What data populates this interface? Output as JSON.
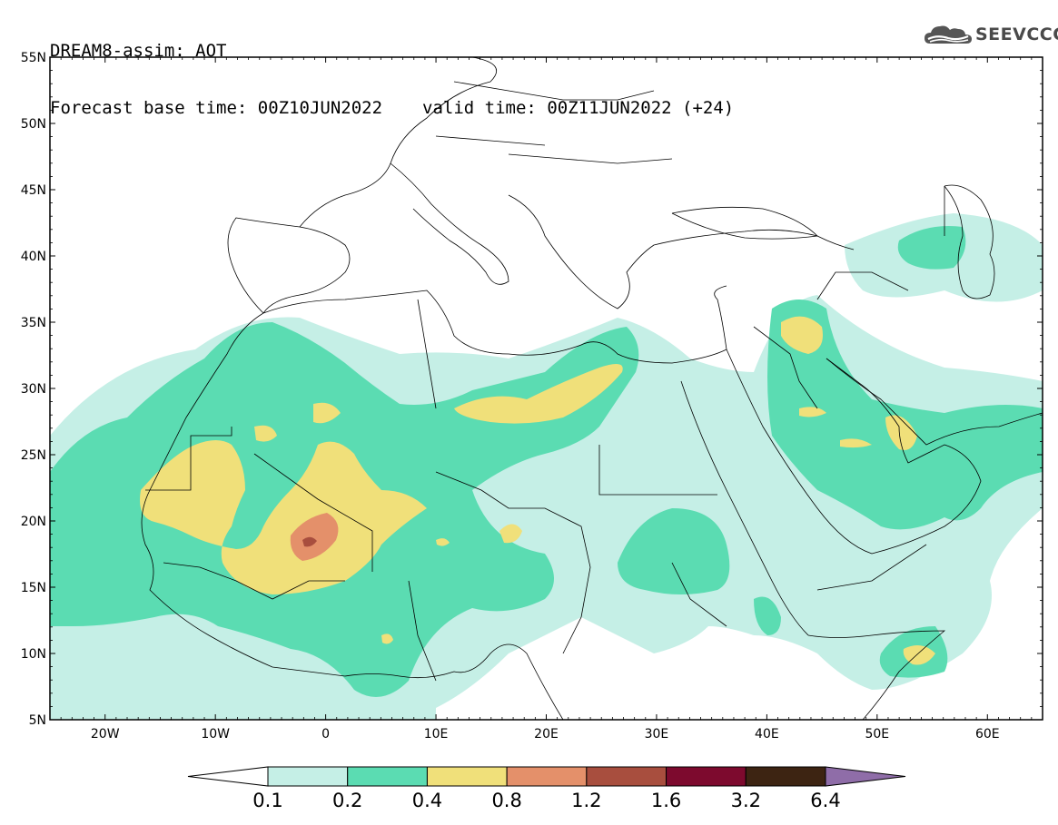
{
  "header": {
    "title": "DREAM8-assim: AOT",
    "base_label": "Forecast base time: 00Z10JUN2022",
    "valid_label": "valid time: 00Z11JUN2022 (+24)"
  },
  "logo": {
    "text": "SEEVCCC",
    "icon": "cloud-icon"
  },
  "map": {
    "lat_range": [
      5,
      55
    ],
    "lon_range": [
      -25,
      65
    ],
    "lat_labels": [
      "55N",
      "50N",
      "45N",
      "40N",
      "35N",
      "30N",
      "25N",
      "20N",
      "15N",
      "10N",
      "5N"
    ],
    "lon_labels": [
      "20W",
      "10W",
      "0",
      "10E",
      "20E",
      "30E",
      "40E",
      "50E",
      "60E"
    ]
  },
  "colorbar": {
    "labels": [
      "0.1",
      "0.2",
      "0.4",
      "0.8",
      "1.2",
      "1.6",
      "3.2",
      "6.4"
    ],
    "colors": [
      "#ffffff",
      "#c5efe6",
      "#5bdcb2",
      "#f0e07a",
      "#e4906a",
      "#a84e3e",
      "#7d0a2e",
      "#3d2412",
      "#8f6da8"
    ]
  }
}
